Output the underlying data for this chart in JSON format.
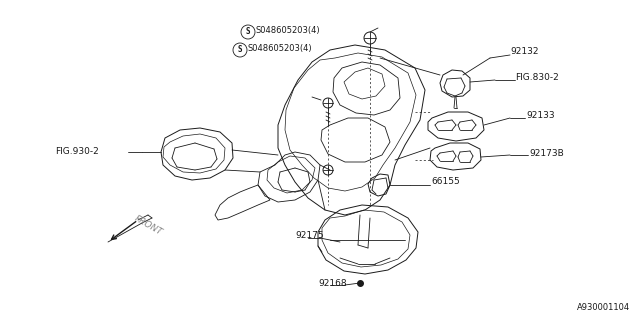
{
  "bg_color": "#ffffff",
  "line_color": "#1a1a1a",
  "watermark": "A930001104",
  "fig_w": 6.4,
  "fig_h": 3.2,
  "dpi": 100,
  "labels": {
    "screw1": "S048605203(4)",
    "screw2": "S048605203(4)",
    "p92132": "92132",
    "fig830": "FIG.830-2",
    "p92133": "92133",
    "p92173b": "92173B",
    "fig930": "FIG.930-2",
    "p66155": "66155",
    "p92175": "92175",
    "p92168": "92168",
    "front": "FRONT"
  }
}
